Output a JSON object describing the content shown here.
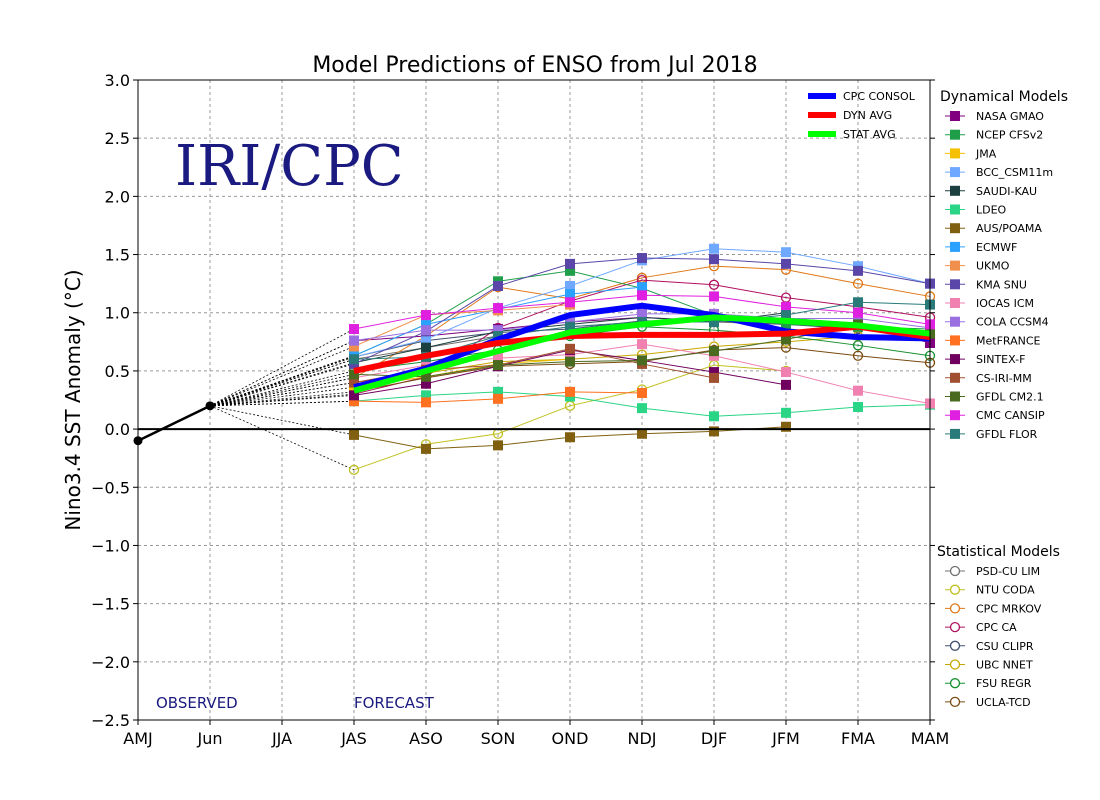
{
  "chart_data": {
    "type": "line",
    "title": "Model Predictions of ENSO from Jul 2018",
    "ylabel": "Nino3.4 SST Anomaly (°C)",
    "xlabel": "",
    "categories": [
      "AMJ",
      "Jun",
      "JJA",
      "JAS",
      "ASO",
      "SON",
      "OND",
      "NDJ",
      "DJF",
      "JFM",
      "FMA",
      "MAM"
    ],
    "ylim": [
      -2.5,
      3.0
    ],
    "yticks": [
      3.0,
      2.5,
      2.0,
      1.5,
      1.0,
      0.5,
      0.0,
      -0.5,
      -1.0,
      -1.5,
      -2.0,
      -2.5
    ],
    "ytick_labels": [
      "3.0",
      "2.5",
      "2.0",
      "1.5",
      "1.0",
      "0.5",
      "0.0",
      "−0.5",
      "−1.0",
      "−1.5",
      "−2.0",
      "−2.5"
    ],
    "grid": true,
    "watermark": "IRI/CPC",
    "observed_label": "OBSERVED",
    "forecast_label": "FORECAST",
    "observed": {
      "x": [
        0,
        1
      ],
      "values": [
        -0.1,
        0.2
      ]
    },
    "consensus_legend_position": "top-right",
    "consensus": [
      {
        "name": "CPC CONSOL",
        "color": "#0000ff",
        "values": [
          0.36,
          0.52,
          0.77,
          0.98,
          1.06,
          0.98,
          0.84,
          0.79,
          0.78
        ]
      },
      {
        "name": "DYN AVG",
        "color": "#ff0000",
        "values": [
          0.5,
          0.63,
          0.74,
          0.8,
          0.81,
          0.81,
          0.82,
          0.88,
          0.79
        ]
      },
      {
        "name": "STAT AVG",
        "color": "#00ff00",
        "values": [
          0.33,
          0.5,
          0.67,
          0.83,
          0.9,
          0.96,
          0.93,
          0.89,
          0.82
        ]
      }
    ],
    "dynamical_header": "Dynamical Models",
    "dynamical": [
      {
        "name": "NASA GMAO",
        "color": "#800080",
        "values": [
          0.76,
          0.8,
          0.86,
          0.92,
          0.96,
          0.93,
          0.95,
          0.91,
          0.74
        ]
      },
      {
        "name": "NCEP CFSv2",
        "color": "#1f9e4a",
        "values": [
          0.63,
          0.9,
          1.27,
          1.36,
          1.21,
          0.98,
          0.9,
          0.88,
          0.86
        ]
      },
      {
        "name": "JMA",
        "color": "#f5c000",
        "values": [
          0.36,
          0.45,
          0.56,
          0.6,
          null,
          null,
          null,
          null,
          null
        ]
      },
      {
        "name": "BCC_CSM11m",
        "color": "#6fa8ff",
        "values": [
          0.62,
          0.77,
          1.04,
          1.23,
          1.45,
          1.55,
          1.52,
          1.4,
          1.25
        ]
      },
      {
        "name": "SAUDI-KAU",
        "color": "#1c3f3f",
        "values": [
          0.57,
          0.7,
          0.84,
          0.9,
          0.96,
          0.92,
          1.0,
          null,
          null
        ]
      },
      {
        "name": "LDEO",
        "color": "#2ad586",
        "values": [
          0.24,
          0.29,
          0.32,
          0.28,
          0.18,
          0.11,
          0.14,
          0.19,
          0.21
        ]
      },
      {
        "name": "AUS/POAMA",
        "color": "#806010",
        "values": [
          -0.05,
          -0.17,
          -0.14,
          -0.07,
          -0.04,
          -0.02,
          0.02,
          null,
          null
        ]
      },
      {
        "name": "ECMWF",
        "color": "#2aa0ff",
        "values": [
          0.63,
          0.9,
          1.03,
          1.16,
          1.22,
          null,
          null,
          null,
          null
        ]
      },
      {
        "name": "UKMO",
        "color": "#f0904c",
        "values": [
          0.71,
          0.98,
          1.02,
          1.07,
          null,
          null,
          null,
          null,
          null
        ]
      },
      {
        "name": "KMA SNU",
        "color": "#5a46a8",
        "values": [
          0.56,
          0.84,
          1.23,
          1.42,
          1.47,
          1.46,
          1.42,
          1.36,
          1.25
        ]
      },
      {
        "name": "IOCAS ICM",
        "color": "#f080b0",
        "values": [
          0.44,
          0.55,
          0.61,
          0.64,
          0.73,
          0.63,
          0.49,
          0.33,
          0.22
        ]
      },
      {
        "name": "COLA CCSM4",
        "color": "#9a70e0",
        "values": [
          0.76,
          0.85,
          0.85,
          0.92,
          0.99,
          0.99,
          0.95,
          0.95,
          0.87
        ]
      },
      {
        "name": "MetFRANCE",
        "color": "#ff7020",
        "values": [
          0.24,
          0.23,
          0.26,
          0.32,
          0.31,
          null,
          null,
          null,
          null
        ]
      },
      {
        "name": "SINTEX-F",
        "color": "#700060",
        "values": [
          0.29,
          0.39,
          0.54,
          0.68,
          0.59,
          0.49,
          0.38,
          null,
          null
        ]
      },
      {
        "name": "CS-IRI-MM",
        "color": "#a05030",
        "values": [
          0.4,
          0.51,
          0.55,
          0.69,
          0.56,
          0.44,
          null,
          null,
          null
        ]
      },
      {
        "name": "GFDL CM2.1",
        "color": "#4a6a20",
        "values": [
          0.47,
          0.45,
          0.55,
          0.58,
          0.59,
          0.67,
          0.77,
          0.9,
          0.82
        ]
      },
      {
        "name": "CMC CANSIP",
        "color": "#e020e0",
        "values": [
          0.86,
          0.98,
          1.04,
          1.09,
          1.15,
          1.14,
          1.05,
          1.0,
          0.9
        ]
      },
      {
        "name": "GFDL FLOR",
        "color": "#2a7a7a",
        "values": [
          0.6,
          0.62,
          0.8,
          0.88,
          0.92,
          0.92,
          0.98,
          1.09,
          1.07
        ]
      }
    ],
    "statistical_header": "Statistical Models",
    "statistical": [
      {
        "name": "PSD-CU LIM",
        "color": "#707070",
        "values": [
          0.6,
          0.7,
          0.8,
          0.88,
          0.92,
          0.92,
          0.9,
          0.87,
          0.8
        ]
      },
      {
        "name": "NTU CODA",
        "color": "#c0c020",
        "values": [
          -0.35,
          -0.13,
          -0.04,
          0.2,
          0.34,
          0.55,
          0.5,
          null,
          null
        ]
      },
      {
        "name": "CPC MRKOV",
        "color": "#e07818",
        "values": [
          0.44,
          0.8,
          1.22,
          1.12,
          1.3,
          1.4,
          1.37,
          1.25,
          1.14
        ]
      },
      {
        "name": "CPC CA",
        "color": "#b01060",
        "values": [
          0.3,
          0.45,
          0.87,
          1.1,
          1.28,
          1.24,
          1.13,
          1.05,
          0.96
        ]
      },
      {
        "name": "CSU CLIPR",
        "color": "#405070",
        "values": [
          0.62,
          0.76,
          0.83,
          0.86,
          0.93,
          0.93,
          0.9,
          0.86,
          0.81
        ]
      },
      {
        "name": "UBC NNET",
        "color": "#c8a800",
        "values": [
          0.4,
          0.48,
          0.58,
          0.6,
          0.64,
          0.71,
          0.75,
          0.8,
          0.78
        ]
      },
      {
        "name": "FSU REGR",
        "color": "#189030",
        "values": [
          0.5,
          0.58,
          0.68,
          0.8,
          0.88,
          0.85,
          0.8,
          0.72,
          0.63
        ]
      },
      {
        "name": "UCLA-TCD",
        "color": "#7a4a10",
        "values": [
          0.32,
          0.44,
          0.54,
          0.56,
          0.58,
          0.68,
          0.7,
          0.63,
          0.57
        ]
      }
    ]
  }
}
